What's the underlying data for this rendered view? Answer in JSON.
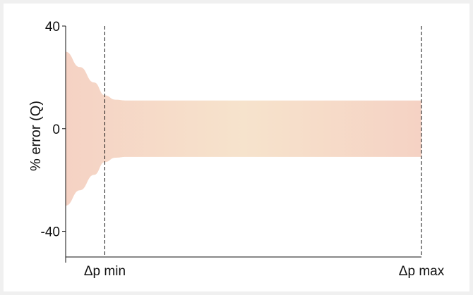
{
  "chart_data": {
    "type": "area",
    "title": "",
    "ylabel": "% error (Q)",
    "xlabel": "",
    "ylim": [
      -50,
      40
    ],
    "yticks": [
      {
        "value": 40,
        "label": "40"
      },
      {
        "value": 0,
        "label": "0"
      },
      {
        "value": -40,
        "label": "-40"
      }
    ],
    "x_markers": [
      {
        "label": "Δp min",
        "x": 0.11
      },
      {
        "label": "Δp max",
        "x": 1.0
      }
    ],
    "xlim": [
      0,
      1.0
    ],
    "band": {
      "x": [
        0,
        0.04,
        0.08,
        0.11,
        0.14,
        0.17,
        0.2,
        1.0
      ],
      "upper": [
        30,
        24,
        18,
        13,
        11.3,
        11,
        11,
        11
      ],
      "lower": [
        -30,
        -24,
        -18,
        -13,
        -11.3,
        -11,
        -11,
        -11
      ]
    },
    "grid": false,
    "colors": {
      "band_edge": "#f5d2c4",
      "band_center": "#f6e3cc",
      "axis": "#111111"
    }
  }
}
